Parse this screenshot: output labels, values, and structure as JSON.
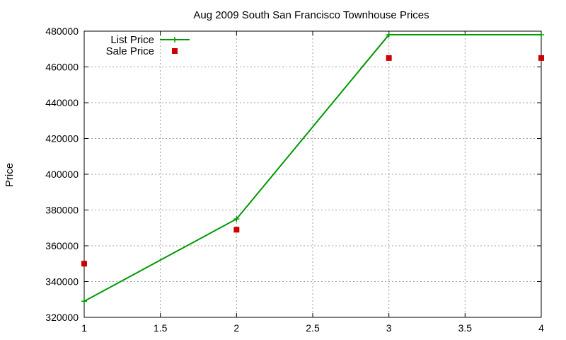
{
  "chart_data": {
    "type": "line",
    "title": "Aug 2009 South San Francisco Townhouse Prices",
    "xlabel": "",
    "ylabel": "Price",
    "xlim": [
      1,
      4
    ],
    "ylim": [
      320000,
      480000
    ],
    "x_ticks": [
      "1",
      "1.5",
      "2",
      "2.5",
      "3",
      "3.5",
      "4"
    ],
    "y_ticks": [
      "320000",
      "340000",
      "360000",
      "380000",
      "400000",
      "420000",
      "440000",
      "460000",
      "480000"
    ],
    "grid": true,
    "legend_position": "top-left",
    "series": [
      {
        "name": "List Price",
        "style": "line-with-plus-markers",
        "color": "#009900",
        "x": [
          1,
          2,
          3,
          4
        ],
        "y": [
          329000,
          375000,
          478000,
          478000
        ]
      },
      {
        "name": "Sale Price",
        "style": "square-points",
        "color": "#cc0000",
        "x": [
          1,
          2,
          3,
          4
        ],
        "y": [
          350000,
          369000,
          465000,
          465000
        ]
      }
    ]
  }
}
